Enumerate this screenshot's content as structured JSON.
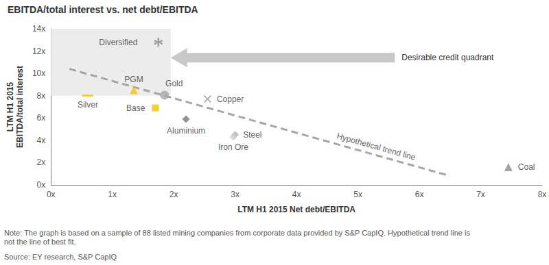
{
  "chart_data": {
    "type": "scatter",
    "title": "EBITDA/total interest vs. net debt/EBITDA",
    "x_label": "LTM H1 2015 Net debt/EBITDA",
    "y_label": [
      "LTM H1 2015",
      "EBITDA/total interest"
    ],
    "xlim": [
      0,
      8
    ],
    "ylim": [
      0,
      14
    ],
    "xticks": [
      {
        "value": 0,
        "label": "0x"
      },
      {
        "value": 1,
        "label": "1x"
      },
      {
        "value": 2,
        "label": "2x"
      },
      {
        "value": 3,
        "label": "3x"
      },
      {
        "value": 4,
        "label": "4x"
      },
      {
        "value": 5,
        "label": "5x"
      },
      {
        "value": 6,
        "label": "6x"
      },
      {
        "value": 7,
        "label": "7x"
      },
      {
        "value": 8,
        "label": "8x"
      }
    ],
    "yticks": [
      {
        "value": 0,
        "label": "0x"
      },
      {
        "value": 2,
        "label": "2x"
      },
      {
        "value": 4,
        "label": "4x"
      },
      {
        "value": 6,
        "label": "6x"
      },
      {
        "value": 8,
        "label": "8x"
      },
      {
        "value": 10,
        "label": "10x"
      },
      {
        "value": 12,
        "label": "12x"
      },
      {
        "value": 14,
        "label": "14x"
      }
    ],
    "grid": false,
    "series": [
      {
        "name": "Diversified",
        "color": "#8c8c8c",
        "marker": "asterisk",
        "values": [
          [
            1.75,
            12.8
          ]
        ]
      },
      {
        "name": "PGM",
        "color": "#f5c400",
        "marker": "triangle",
        "values": [
          [
            1.35,
            8.5
          ]
        ]
      },
      {
        "name": "Silver",
        "color": "#f5c400",
        "marker": "dash",
        "values": [
          [
            0.6,
            8.0
          ]
        ]
      },
      {
        "name": "Gold",
        "color": "#a6a6a6",
        "marker": "circle",
        "values": [
          [
            1.85,
            8.05
          ]
        ]
      },
      {
        "name": "Base",
        "color": "#f5c400",
        "marker": "square",
        "values": [
          [
            1.7,
            6.9
          ]
        ]
      },
      {
        "name": "Copper",
        "color": "#8c8c8c",
        "marker": "x",
        "values": [
          [
            2.55,
            7.7
          ]
        ]
      },
      {
        "name": "Aluminium",
        "color": "#747480",
        "marker": "diamond",
        "values": [
          [
            2.2,
            5.9
          ]
        ]
      },
      {
        "name": "Steel",
        "color": "#b0b0b0",
        "marker": "diamond",
        "values": [
          [
            3.0,
            4.5
          ]
        ]
      },
      {
        "name": "Iron Ore",
        "color": "#d0d0d0",
        "marker": "diamond",
        "values": [
          [
            2.97,
            4.3
          ]
        ]
      },
      {
        "name": "Coal",
        "color": "#8c8c8c",
        "marker": "triangle",
        "values": [
          [
            7.45,
            1.6
          ]
        ]
      }
    ],
    "trend_line": {
      "label": "Hypothetical trend line",
      "x": [
        0.3,
        6.5
      ],
      "y": [
        10.4,
        0.8
      ],
      "color": "#a6a6a6",
      "line_style": "dashed"
    },
    "region": {
      "label": "Desirable credit quadrant",
      "xlim": [
        0,
        1.95
      ],
      "ylim": [
        8,
        14
      ],
      "color": "#ececec",
      "arrow_from": [
        5.6,
        11.4
      ],
      "arrow_to": [
        1.95,
        11.4
      ],
      "arrow_color": "#c8c8c8"
    },
    "note": [
      "Note: The graph is based on a sample of 88 listed mining companies from corporate data provided by S&P CapIQ. Hypothetical trend line is",
      "not the line of best fit."
    ],
    "source": "Source: EY research, S&P CapIQ"
  }
}
